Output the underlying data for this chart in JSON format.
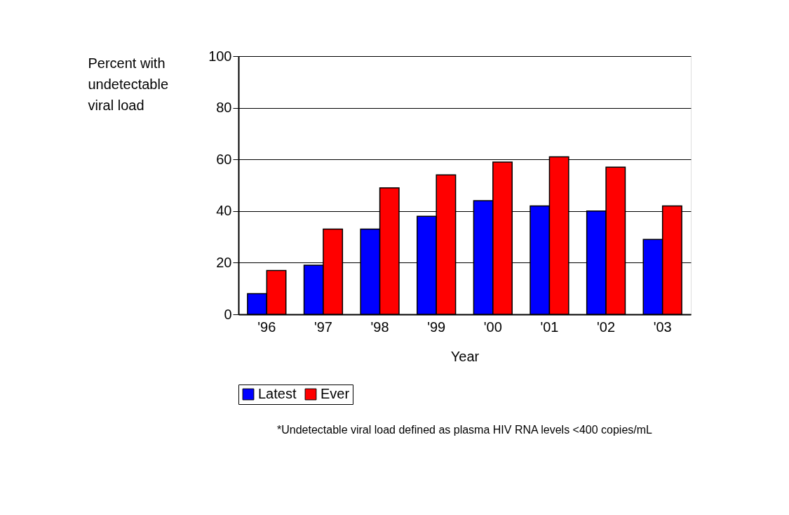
{
  "chart_data": {
    "type": "bar",
    "xlabel": "Year",
    "ylabel": "Percent with undetectable viral load",
    "categories": [
      "'96",
      "'97",
      "'98",
      "'99",
      "'00",
      "'01",
      "'02",
      "'03"
    ],
    "series": [
      {
        "name": "Latest",
        "color": "#0000ff",
        "values": [
          8,
          19,
          33,
          38,
          44,
          42,
          40,
          29
        ]
      },
      {
        "name": "Ever",
        "color": "#ff0000",
        "values": [
          17,
          33,
          49,
          54,
          59,
          61,
          57,
          42
        ]
      }
    ],
    "ylim": [
      0,
      100
    ],
    "yticks": [
      0,
      20,
      40,
      60,
      80,
      100
    ],
    "grid": "y",
    "legend": "bottom",
    "annotations": [
      "*Undetectable viral load defined as plasma HIV RNA levels <400 copies/mL"
    ]
  }
}
